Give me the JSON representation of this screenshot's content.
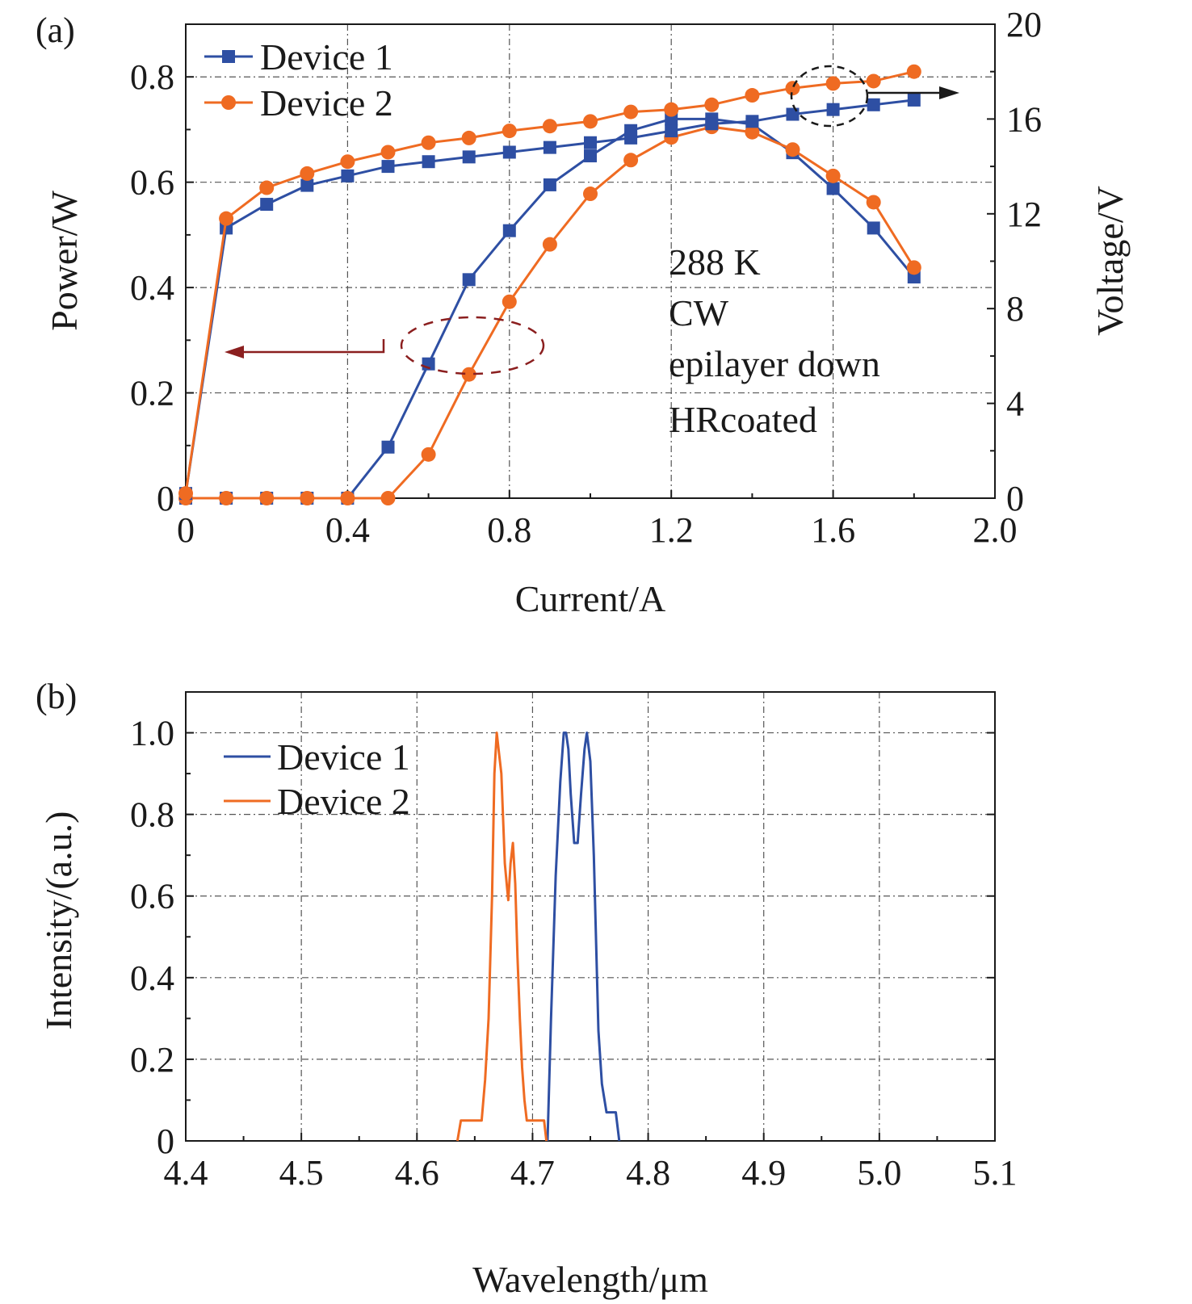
{
  "chart_data": [
    {
      "panel": "(a)",
      "type": "line",
      "xlabel": "Current/A",
      "ylabel": "Power/W",
      "y2label": "Voltage/V",
      "xlim": [
        0,
        2.0
      ],
      "ylim": [
        0,
        0.9
      ],
      "y2lim": [
        0,
        20
      ],
      "xticks": [
        0,
        0.4,
        0.8,
        1.2,
        1.6,
        2.0
      ],
      "xtick_labels": [
        "0",
        "0.4",
        "0.8",
        "1.2",
        "1.6",
        "2.0"
      ],
      "yticks": [
        0,
        0.2,
        0.4,
        0.6,
        0.8
      ],
      "ytick_labels": [
        "0",
        "0.2",
        "0.4",
        "0.6",
        "0.8"
      ],
      "y2ticks": [
        0,
        4,
        8,
        12,
        16,
        20
      ],
      "y2tick_labels": [
        "0",
        "4",
        "8",
        "12",
        "16",
        "20"
      ],
      "grid": true,
      "legend_position": "top-left",
      "annotations": [
        "288 K",
        "CW",
        "epilayer down",
        "HRcoated"
      ],
      "series": [
        {
          "name": "Device 1",
          "quantity": "power",
          "axis": "left",
          "color": "#2e4fa3",
          "marker": "square",
          "x": [
            0,
            0.1,
            0.2,
            0.3,
            0.4,
            0.5,
            0.6,
            0.7,
            0.8,
            0.9,
            1.0,
            1.1,
            1.2,
            1.3,
            1.4,
            1.5,
            1.6,
            1.7,
            1.8
          ],
          "y": [
            0,
            0,
            0,
            0,
            0,
            0.097,
            0.255,
            0.415,
            0.508,
            0.595,
            0.65,
            0.698,
            0.72,
            0.72,
            0.71,
            0.656,
            0.588,
            0.513,
            0.42
          ]
        },
        {
          "name": "Device 2",
          "quantity": "power",
          "axis": "left",
          "color": "#ef6b22",
          "marker": "circle",
          "x": [
            0,
            0.1,
            0.2,
            0.3,
            0.4,
            0.5,
            0.6,
            0.7,
            0.8,
            0.9,
            1.0,
            1.1,
            1.2,
            1.3,
            1.4,
            1.5,
            1.6,
            1.7,
            1.8
          ],
          "y": [
            0,
            0,
            0,
            0,
            0,
            0,
            0.083,
            0.235,
            0.373,
            0.482,
            0.578,
            0.642,
            0.685,
            0.705,
            0.695,
            0.662,
            0.612,
            0.562,
            0.438
          ]
        },
        {
          "name": "Device 1",
          "quantity": "voltage",
          "axis": "right",
          "color": "#2e4fa3",
          "marker": "square",
          "x": [
            0,
            0.1,
            0.2,
            0.3,
            0.4,
            0.5,
            0.6,
            0.7,
            0.8,
            0.9,
            1.0,
            1.1,
            1.2,
            1.3,
            1.4,
            1.5,
            1.6,
            1.7,
            1.8
          ],
          "y": [
            0.2,
            11.4,
            12.4,
            13.2,
            13.6,
            14.0,
            14.2,
            14.4,
            14.6,
            14.8,
            15.0,
            15.2,
            15.5,
            15.8,
            15.9,
            16.2,
            16.4,
            16.6,
            16.8
          ]
        },
        {
          "name": "Device 2",
          "quantity": "voltage",
          "axis": "right",
          "color": "#ef6b22",
          "marker": "circle",
          "x": [
            0,
            0.1,
            0.2,
            0.3,
            0.4,
            0.5,
            0.6,
            0.7,
            0.8,
            0.9,
            1.0,
            1.1,
            1.2,
            1.3,
            1.4,
            1.5,
            1.6,
            1.7,
            1.8
          ],
          "y": [
            0.2,
            11.8,
            13.1,
            13.7,
            14.2,
            14.6,
            15.0,
            15.2,
            15.5,
            15.7,
            15.9,
            16.3,
            16.4,
            16.6,
            17.0,
            17.3,
            17.5,
            17.6,
            18.0
          ]
        }
      ]
    },
    {
      "panel": "(b)",
      "type": "line",
      "xlabel": "Wavelength/μm",
      "ylabel": "Intensity/(a.u.)",
      "xlim": [
        4.4,
        5.1
      ],
      "ylim": [
        0,
        1.1
      ],
      "xticks": [
        4.4,
        4.5,
        4.6,
        4.7,
        4.8,
        4.9,
        5.0,
        5.1
      ],
      "xtick_labels": [
        "4.4",
        "4.5",
        "4.6",
        "4.7",
        "4.8",
        "4.9",
        "5.0",
        "5.1"
      ],
      "yticks": [
        0,
        0.2,
        0.4,
        0.6,
        0.8,
        1.0
      ],
      "ytick_labels": [
        "0",
        "0.2",
        "0.4",
        "0.6",
        "0.8",
        "1.0"
      ],
      "grid": true,
      "legend_position": "top-left",
      "series": [
        {
          "name": "Device 1",
          "color": "#2e4fa3",
          "x": [
            4.713,
            4.716,
            4.72,
            4.724,
            4.727,
            4.729,
            4.731,
            4.733,
            4.736,
            4.739,
            4.742,
            4.745,
            4.747,
            4.75,
            4.753,
            4.757,
            4.76,
            4.764,
            4.767,
            4.77,
            4.772,
            4.775
          ],
          "y": [
            0,
            0.3,
            0.65,
            0.88,
            1.0,
            1.0,
            0.96,
            0.85,
            0.73,
            0.73,
            0.85,
            0.96,
            1.0,
            0.93,
            0.7,
            0.27,
            0.14,
            0.07,
            0.07,
            0.07,
            0.07,
            0
          ]
        },
        {
          "name": "Device 2",
          "color": "#ef6b22",
          "x": [
            4.635,
            4.638,
            4.644,
            4.652,
            4.656,
            4.659,
            4.662,
            4.665,
            4.667,
            4.669,
            4.671,
            4.673,
            4.676,
            4.678,
            4.679,
            4.681,
            4.683,
            4.685,
            4.687,
            4.689,
            4.691,
            4.693,
            4.695,
            4.697,
            4.699,
            4.702,
            4.706,
            4.71,
            4.712
          ],
          "y": [
            0,
            0.05,
            0.05,
            0.05,
            0.05,
            0.15,
            0.3,
            0.6,
            0.9,
            1.0,
            0.95,
            0.9,
            0.68,
            0.62,
            0.59,
            0.68,
            0.73,
            0.63,
            0.45,
            0.3,
            0.18,
            0.1,
            0.05,
            0.05,
            0.05,
            0.05,
            0.05,
            0.05,
            0
          ]
        }
      ]
    }
  ]
}
